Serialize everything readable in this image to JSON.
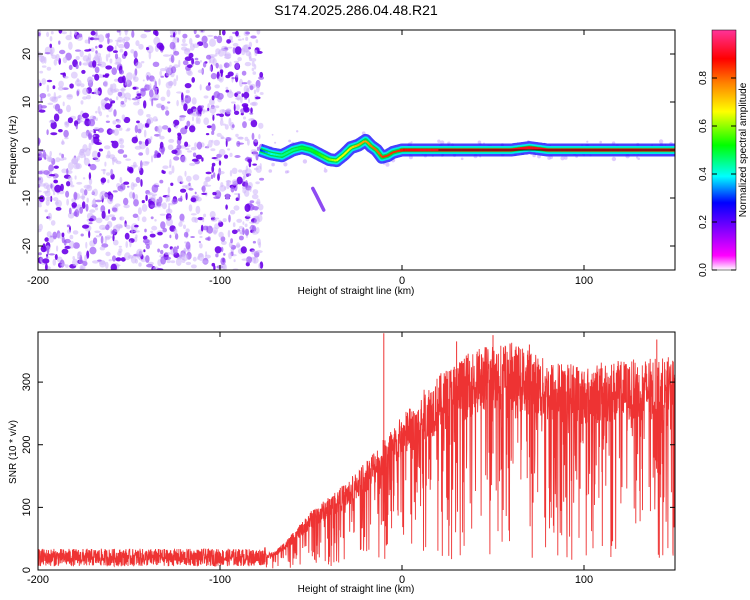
{
  "title": "S174.2025.286.04.48.R21",
  "chart_data": [
    {
      "type": "heatmap",
      "xlabel": "Height of straight line (km)",
      "ylabel": "Frequency (Hz)",
      "xlim": [
        -200,
        150
      ],
      "ylim": [
        -25,
        25
      ],
      "x_ticks": [
        -200,
        -100,
        0,
        100
      ],
      "x_tick_labels": [
        "-200",
        "-100",
        "0",
        "100"
      ],
      "y_ticks": [
        -20,
        -10,
        0,
        10,
        20
      ],
      "y_tick_labels": [
        "-20",
        "-10",
        "0",
        "10",
        "20"
      ],
      "colorbar": {
        "label": "Normalized spectral amplitude",
        "range": [
          0,
          1
        ],
        "ticks": [
          0.0,
          0.2,
          0.4,
          0.6,
          0.8
        ],
        "tick_labels": [
          "0.0",
          "0.2",
          "0.4",
          "0.6",
          "0.8"
        ],
        "colors": [
          "#ffffff",
          "#ff00ff",
          "#8000ff",
          "#0000ff",
          "#00ffff",
          "#00ff00",
          "#ffff00",
          "#ff8000",
          "#ff0000",
          "#ff3399"
        ]
      },
      "noise_region_x": [
        -200,
        -77
      ],
      "signal_track": {
        "x": [
          -78,
          -72,
          -66,
          -60,
          -55,
          -50,
          -45,
          -40,
          -36,
          -32,
          -28,
          -24,
          -20,
          -17,
          -14,
          -11,
          -8,
          -5,
          -2,
          0,
          10,
          20,
          40,
          60,
          70,
          80,
          100,
          120,
          140,
          150
        ],
        "y": [
          0,
          -0.8,
          -1.2,
          0,
          0.5,
          0,
          -1,
          -2,
          -2.2,
          -1,
          0.5,
          1,
          2,
          0.8,
          0,
          -1.5,
          -1.2,
          -0.5,
          -0.2,
          0,
          0,
          0,
          0,
          0,
          0.5,
          0,
          0,
          0,
          0,
          0
        ],
        "amplitude": [
          0.3,
          0.4,
          0.45,
          0.45,
          0.5,
          0.5,
          0.55,
          0.6,
          0.65,
          0.65,
          0.7,
          0.75,
          0.75,
          0.8,
          0.8,
          0.85,
          0.85,
          0.85,
          0.85,
          0.88,
          0.9,
          0.9,
          0.9,
          0.9,
          0.9,
          0.9,
          0.9,
          0.9,
          0.9,
          0.9
        ]
      },
      "side_feature": {
        "x": [
          -49,
          -47,
          -45,
          -43
        ],
        "y": [
          -8,
          -9.5,
          -11,
          -12.5
        ]
      }
    },
    {
      "type": "line",
      "xlabel": "Height of straight line (km)",
      "ylabel": "SNR (10 * v/v)",
      "xlim": [
        -200,
        150
      ],
      "ylim": [
        0,
        380
      ],
      "x_ticks": [
        -200,
        -100,
        0,
        100
      ],
      "x_tick_labels": [
        "-200",
        "-100",
        "0",
        "100"
      ],
      "y_ticks": [
        0,
        100,
        200,
        300
      ],
      "y_tick_labels": [
        "0",
        "100",
        "200",
        "300"
      ],
      "color": "#ee3333",
      "envelope": {
        "x": [
          -200,
          -80,
          -70,
          -60,
          -50,
          -40,
          -30,
          -20,
          -10,
          0,
          10,
          20,
          30,
          40,
          50,
          60,
          70,
          80,
          100,
          120,
          150
        ],
        "y": [
          20,
          20,
          25,
          50,
          80,
          100,
          120,
          150,
          180,
          210,
          240,
          265,
          285,
          300,
          310,
          310,
          300,
          285,
          280,
          285,
          290
        ]
      },
      "spikes": [
        {
          "x": -10,
          "y": 378
        },
        {
          "x": 30,
          "y": 365
        },
        {
          "x": 50,
          "y": 375
        },
        {
          "x": 70,
          "y": 360
        },
        {
          "x": 140,
          "y": 368
        }
      ]
    }
  ]
}
